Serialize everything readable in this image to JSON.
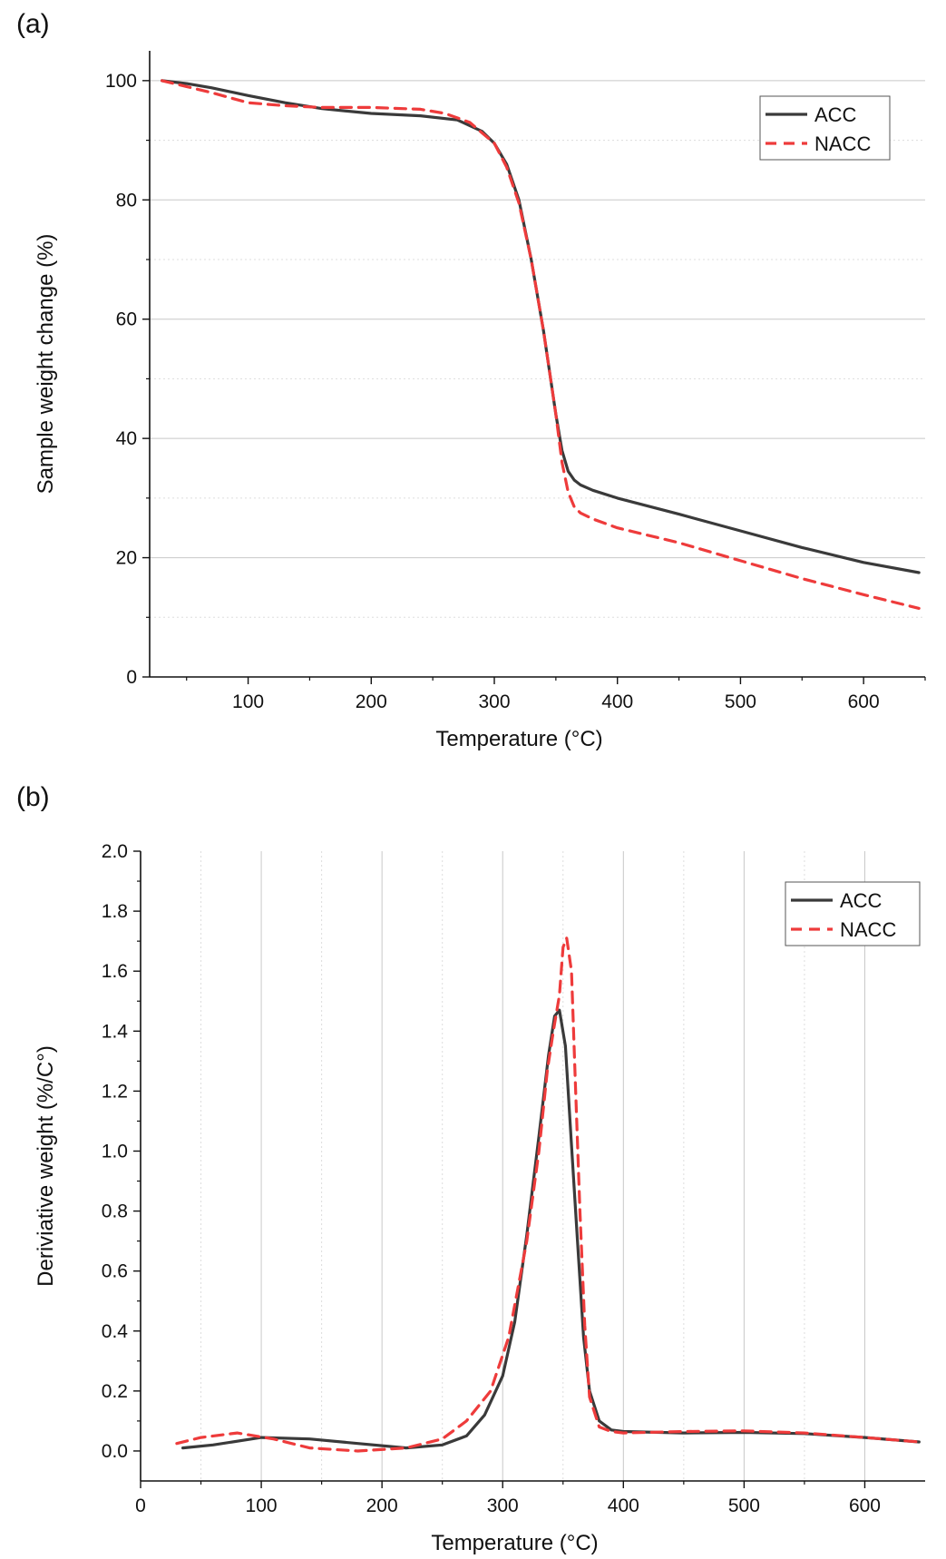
{
  "panels": {
    "a": "(a)",
    "b": "(b)"
  },
  "chart_data": [
    {
      "type": "line",
      "title": "",
      "xlabel": "Temperature (°C)",
      "ylabel": "Sample weight change (%)",
      "xlim": [
        20,
        650
      ],
      "ylim": [
        0,
        105
      ],
      "xticks": [
        100,
        200,
        300,
        400,
        500,
        600
      ],
      "yticks": [
        0,
        20,
        40,
        60,
        80,
        100
      ],
      "grid": "horizontal",
      "legend": "top-right",
      "series": [
        {
          "name": "ACC",
          "color": "#3a3a3a",
          "style": "solid",
          "x": [
            30,
            50,
            70,
            100,
            130,
            160,
            200,
            240,
            270,
            290,
            300,
            310,
            320,
            330,
            340,
            345,
            350,
            355,
            360,
            365,
            370,
            380,
            400,
            450,
            500,
            550,
            600,
            645
          ],
          "y": [
            100,
            99.5,
            98.8,
            97.5,
            96.3,
            95.3,
            94.5,
            94.1,
            93.4,
            91.5,
            89.5,
            86,
            80,
            70,
            58,
            51,
            44,
            38,
            34.5,
            33,
            32.2,
            31.3,
            30,
            27.3,
            24.5,
            21.7,
            19.2,
            17.5
          ]
        },
        {
          "name": "NACC",
          "color": "#ee3b3b",
          "style": "dashed",
          "x": [
            30,
            50,
            70,
            100,
            130,
            160,
            200,
            240,
            260,
            280,
            300,
            310,
            320,
            330,
            340,
            345,
            350,
            355,
            360,
            365,
            370,
            380,
            400,
            450,
            500,
            550,
            600,
            645
          ],
          "y": [
            100,
            99,
            98,
            96.3,
            95.8,
            95.5,
            95.5,
            95.2,
            94.5,
            93,
            89.5,
            85.5,
            79.5,
            70,
            58,
            51,
            44,
            36,
            31,
            28.5,
            27.5,
            26.5,
            25,
            22.5,
            19.5,
            16.5,
            13.8,
            11.5
          ]
        }
      ]
    },
    {
      "type": "line",
      "title": "",
      "xlabel": "Temperature (°C)",
      "ylabel": "Deriviative weight (%/C°)",
      "xlim": [
        0,
        650
      ],
      "ylim": [
        -0.1,
        2.0
      ],
      "xticks": [
        0,
        100,
        200,
        300,
        400,
        500,
        600
      ],
      "yticks": [
        0.0,
        0.2,
        0.4,
        0.6,
        0.8,
        1.0,
        1.2,
        1.4,
        1.6,
        1.8,
        2.0
      ],
      "ytick_labels": [
        "0.0",
        "0.2",
        "0.4",
        "0.6",
        "0.8",
        "1.0",
        "1.2",
        "1.4",
        "1.6",
        "1.8",
        "2.0"
      ],
      "grid": "vertical",
      "legend": "top-right",
      "series": [
        {
          "name": "ACC",
          "color": "#3a3a3a",
          "style": "solid",
          "x": [
            35,
            60,
            100,
            140,
            180,
            220,
            250,
            270,
            285,
            300,
            310,
            320,
            330,
            338,
            343,
            347,
            352,
            357,
            362,
            367,
            372,
            380,
            390,
            400,
            450,
            500,
            550,
            600,
            645
          ],
          "y": [
            0.01,
            0.02,
            0.045,
            0.04,
            0.025,
            0.01,
            0.02,
            0.05,
            0.12,
            0.25,
            0.43,
            0.72,
            1.05,
            1.32,
            1.45,
            1.47,
            1.35,
            1.02,
            0.7,
            0.38,
            0.2,
            0.1,
            0.07,
            0.065,
            0.06,
            0.062,
            0.058,
            0.045,
            0.03
          ]
        },
        {
          "name": "NACC",
          "color": "#ee3b3b",
          "style": "dashed",
          "x": [
            30,
            50,
            80,
            110,
            140,
            180,
            220,
            250,
            270,
            290,
            305,
            320,
            330,
            337,
            342,
            347,
            350,
            353,
            357,
            360,
            364,
            368,
            372,
            380,
            390,
            400,
            450,
            500,
            550,
            600,
            645
          ],
          "y": [
            0.025,
            0.045,
            0.06,
            0.04,
            0.01,
            0.0,
            0.01,
            0.04,
            0.1,
            0.2,
            0.38,
            0.7,
            1.0,
            1.27,
            1.4,
            1.52,
            1.68,
            1.71,
            1.6,
            1.25,
            0.8,
            0.42,
            0.18,
            0.08,
            0.065,
            0.06,
            0.065,
            0.067,
            0.06,
            0.045,
            0.03
          ]
        }
      ]
    }
  ]
}
